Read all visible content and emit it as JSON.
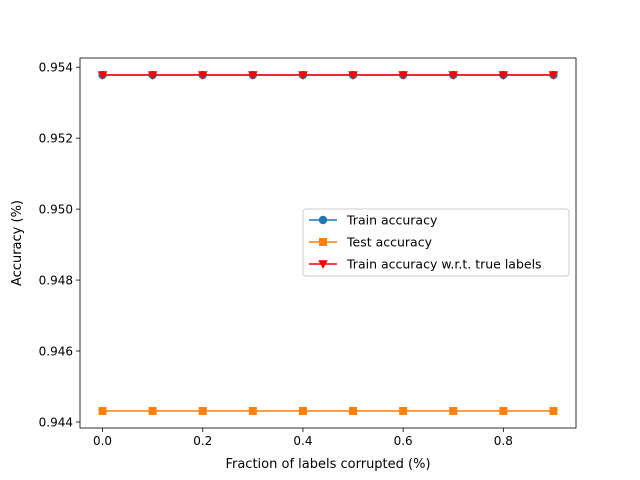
{
  "chart_data": {
    "type": "line",
    "title": "",
    "xlabel": "Fraction of labels corrupted (%)",
    "ylabel": "Accuracy (%)",
    "x": [
      0.0,
      0.1,
      0.2,
      0.3,
      0.4,
      0.5,
      0.6,
      0.7,
      0.8,
      0.9
    ],
    "xlim": [
      -0.045,
      0.945
    ],
    "ylim": [
      0.94383,
      0.95426
    ],
    "xticks": [
      0.0,
      0.2,
      0.4,
      0.6,
      0.8
    ],
    "xtick_labels": [
      "0.0",
      "0.2",
      "0.4",
      "0.6",
      "0.8"
    ],
    "yticks": [
      0.944,
      0.946,
      0.948,
      0.95,
      0.952,
      0.954
    ],
    "ytick_labels": [
      "0.944",
      "0.946",
      "0.948",
      "0.950",
      "0.952",
      "0.954"
    ],
    "grid": false,
    "legend_position": "center-right",
    "series": [
      {
        "name": "Train accuracy",
        "values": [
          0.95378,
          0.95378,
          0.95378,
          0.95378,
          0.95378,
          0.95378,
          0.95378,
          0.95378,
          0.95378,
          0.95378
        ],
        "color": "#1f77b4",
        "marker": "circle"
      },
      {
        "name": "Test accuracy",
        "values": [
          0.94431,
          0.94431,
          0.94431,
          0.94431,
          0.94431,
          0.94431,
          0.94431,
          0.94431,
          0.94431,
          0.94431
        ],
        "color": "#ff7f0e",
        "marker": "square"
      },
      {
        "name": "Train accuracy w.r.t. true labels",
        "values": [
          0.95378,
          0.95378,
          0.95378,
          0.95378,
          0.95378,
          0.95378,
          0.95378,
          0.95378,
          0.95378,
          0.95378
        ],
        "color": "#ff0000",
        "marker": "triangle-down"
      }
    ]
  }
}
